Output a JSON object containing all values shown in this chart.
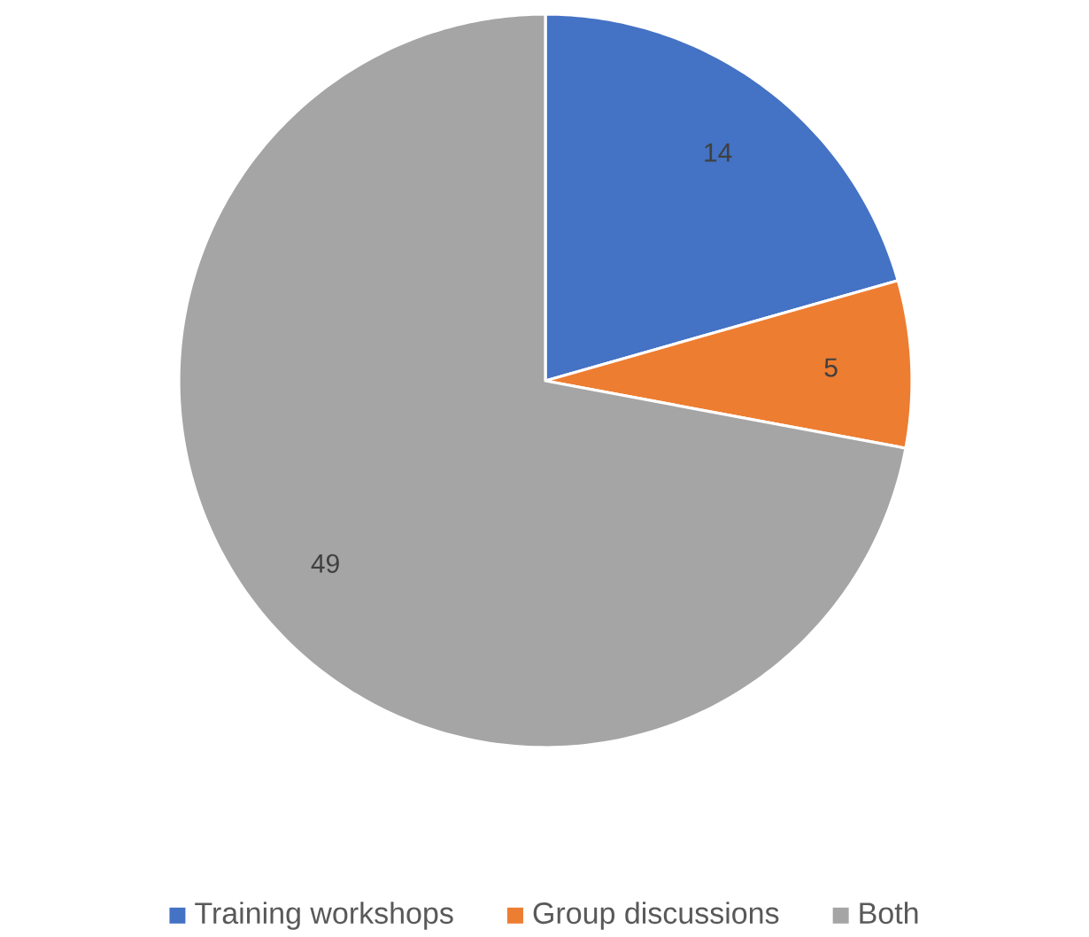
{
  "chart_data": {
    "type": "pie",
    "categories": [
      "Training workshops",
      "Group discussions",
      "Both"
    ],
    "values": [
      14,
      5,
      49
    ],
    "colors": [
      "#4472c4",
      "#ed7d31",
      "#a5a5a5"
    ],
    "data_labels": true,
    "legend": "bottom"
  }
}
